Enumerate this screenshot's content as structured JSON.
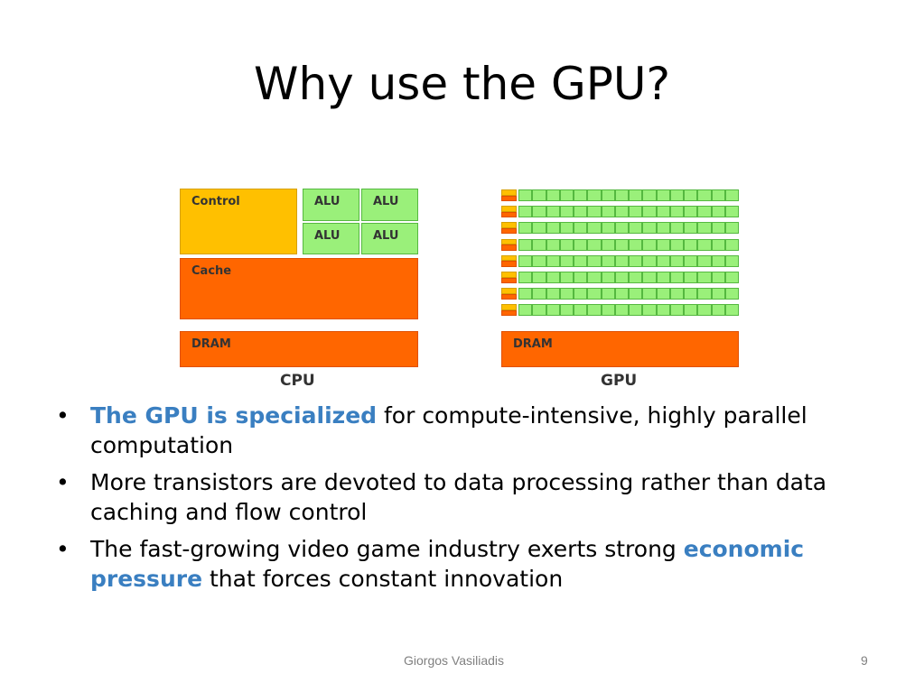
{
  "slide": {
    "title": "Why use the GPU?",
    "footer_author": "Giorgos Vasiliadis",
    "page_number": "9"
  },
  "diagram": {
    "cpu": {
      "caption": "CPU",
      "control_label": "Control",
      "alu_labels": [
        "ALU",
        "ALU",
        "ALU",
        "ALU"
      ],
      "cache_label": "Cache",
      "dram_label": "DRAM"
    },
    "gpu": {
      "caption": "GPU",
      "dram_label": "DRAM",
      "rows": 8,
      "alus_per_row": 16
    },
    "colors": {
      "control": "#ffc000",
      "alu": "#9af07a",
      "cache_dram": "#ff6600",
      "highlight": "#3a7fc1"
    }
  },
  "bullets": [
    {
      "bullet": "•",
      "parts": [
        {
          "text": "The GPU is specialized",
          "hl": true
        },
        {
          "text": " for compute-intensive, highly parallel computation",
          "hl": false
        }
      ]
    },
    {
      "bullet": "•",
      "parts": [
        {
          "text": "More transistors are devoted to data processing rather than data caching and flow control",
          "hl": false
        }
      ]
    },
    {
      "bullet": "•",
      "parts": [
        {
          "text": "The fast-growing video game industry exerts strong ",
          "hl": false
        },
        {
          "text": "economic  pressure",
          "hl": true
        },
        {
          "text": " that forces constant innovation",
          "hl": false
        }
      ]
    }
  ]
}
